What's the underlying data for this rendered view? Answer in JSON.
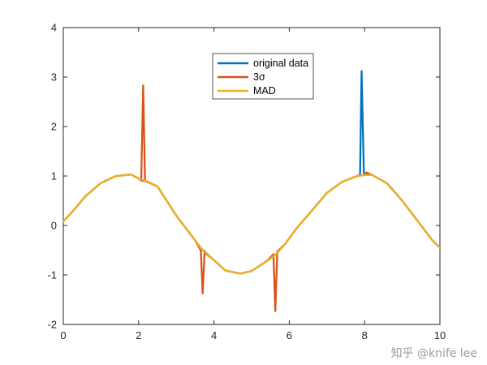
{
  "chart_data": {
    "type": "line",
    "title": "",
    "xlabel": "",
    "ylabel": "",
    "xlim": [
      0,
      10
    ],
    "ylim": [
      -2,
      4
    ],
    "xticks": [
      0,
      2,
      4,
      6,
      8,
      10
    ],
    "yticks": [
      -2,
      -1,
      0,
      1,
      2,
      3,
      4
    ],
    "grid": false,
    "legend_position": "top-center",
    "series": [
      {
        "name": "original data",
        "color": "#0072BD",
        "x": [
          0,
          0.3,
          0.6,
          1.0,
          1.4,
          1.8,
          2.0,
          2.1,
          2.15,
          2.2,
          2.5,
          3.0,
          3.5,
          3.7,
          3.75,
          3.8,
          4.0,
          4.3,
          4.7,
          5.0,
          5.4,
          5.62,
          5.65,
          5.68,
          5.9,
          6.2,
          6.6,
          7.0,
          7.4,
          7.8,
          7.88,
          7.92,
          7.98,
          8.2,
          8.6,
          9.0,
          9.4,
          9.8,
          10.0
        ],
        "values": [
          0.08,
          0.33,
          0.6,
          0.86,
          1.0,
          1.03,
          0.95,
          0.91,
          0.9,
          0.9,
          0.79,
          0.2,
          -0.3,
          -0.5,
          -0.52,
          -0.56,
          -0.7,
          -0.91,
          -0.97,
          -0.92,
          -0.72,
          -0.6,
          -0.58,
          -0.55,
          -0.36,
          -0.05,
          0.3,
          0.66,
          0.88,
          1.0,
          1.02,
          3.12,
          1.05,
          1.02,
          0.85,
          0.5,
          0.1,
          -0.3,
          -0.45
        ]
      },
      {
        "name": "3σ",
        "color": "#D95319",
        "x": [
          0,
          0.3,
          0.6,
          1.0,
          1.4,
          1.8,
          2.0,
          2.07,
          2.12,
          2.17,
          2.5,
          3.0,
          3.5,
          3.65,
          3.7,
          3.75,
          4.0,
          4.3,
          4.7,
          5.0,
          5.4,
          5.58,
          5.63,
          5.68,
          5.9,
          6.2,
          6.6,
          7.0,
          7.4,
          7.8,
          8.0,
          8.05,
          8.2,
          8.6,
          9.0,
          9.4,
          9.8,
          10.0
        ],
        "values": [
          0.08,
          0.33,
          0.6,
          0.86,
          1.0,
          1.03,
          0.95,
          0.91,
          2.83,
          0.9,
          0.79,
          0.2,
          -0.3,
          -0.5,
          -1.37,
          -0.55,
          -0.7,
          -0.91,
          -0.97,
          -0.92,
          -0.72,
          -0.58,
          -1.73,
          -0.53,
          -0.36,
          -0.05,
          0.3,
          0.66,
          0.88,
          1.0,
          1.02,
          1.07,
          1.02,
          0.85,
          0.5,
          0.1,
          -0.3,
          -0.45
        ]
      },
      {
        "name": "MAD",
        "color": "#EDB120",
        "x": [
          0,
          0.3,
          0.6,
          1.0,
          1.4,
          1.8,
          2.0,
          2.2,
          2.5,
          3.0,
          3.5,
          3.7,
          4.0,
          4.3,
          4.7,
          5.0,
          5.4,
          5.65,
          5.9,
          6.2,
          6.6,
          7.0,
          7.4,
          7.8,
          8.0,
          8.2,
          8.6,
          9.0,
          9.4,
          9.8,
          10.0
        ],
        "values": [
          0.08,
          0.33,
          0.6,
          0.86,
          1.0,
          1.03,
          0.95,
          0.9,
          0.79,
          0.2,
          -0.3,
          -0.5,
          -0.7,
          -0.91,
          -0.97,
          -0.92,
          -0.72,
          -0.58,
          -0.36,
          -0.05,
          0.3,
          0.66,
          0.88,
          1.0,
          1.02,
          1.02,
          0.85,
          0.5,
          0.1,
          -0.3,
          -0.45
        ]
      }
    ]
  },
  "watermark": "知乎 @knife lee"
}
